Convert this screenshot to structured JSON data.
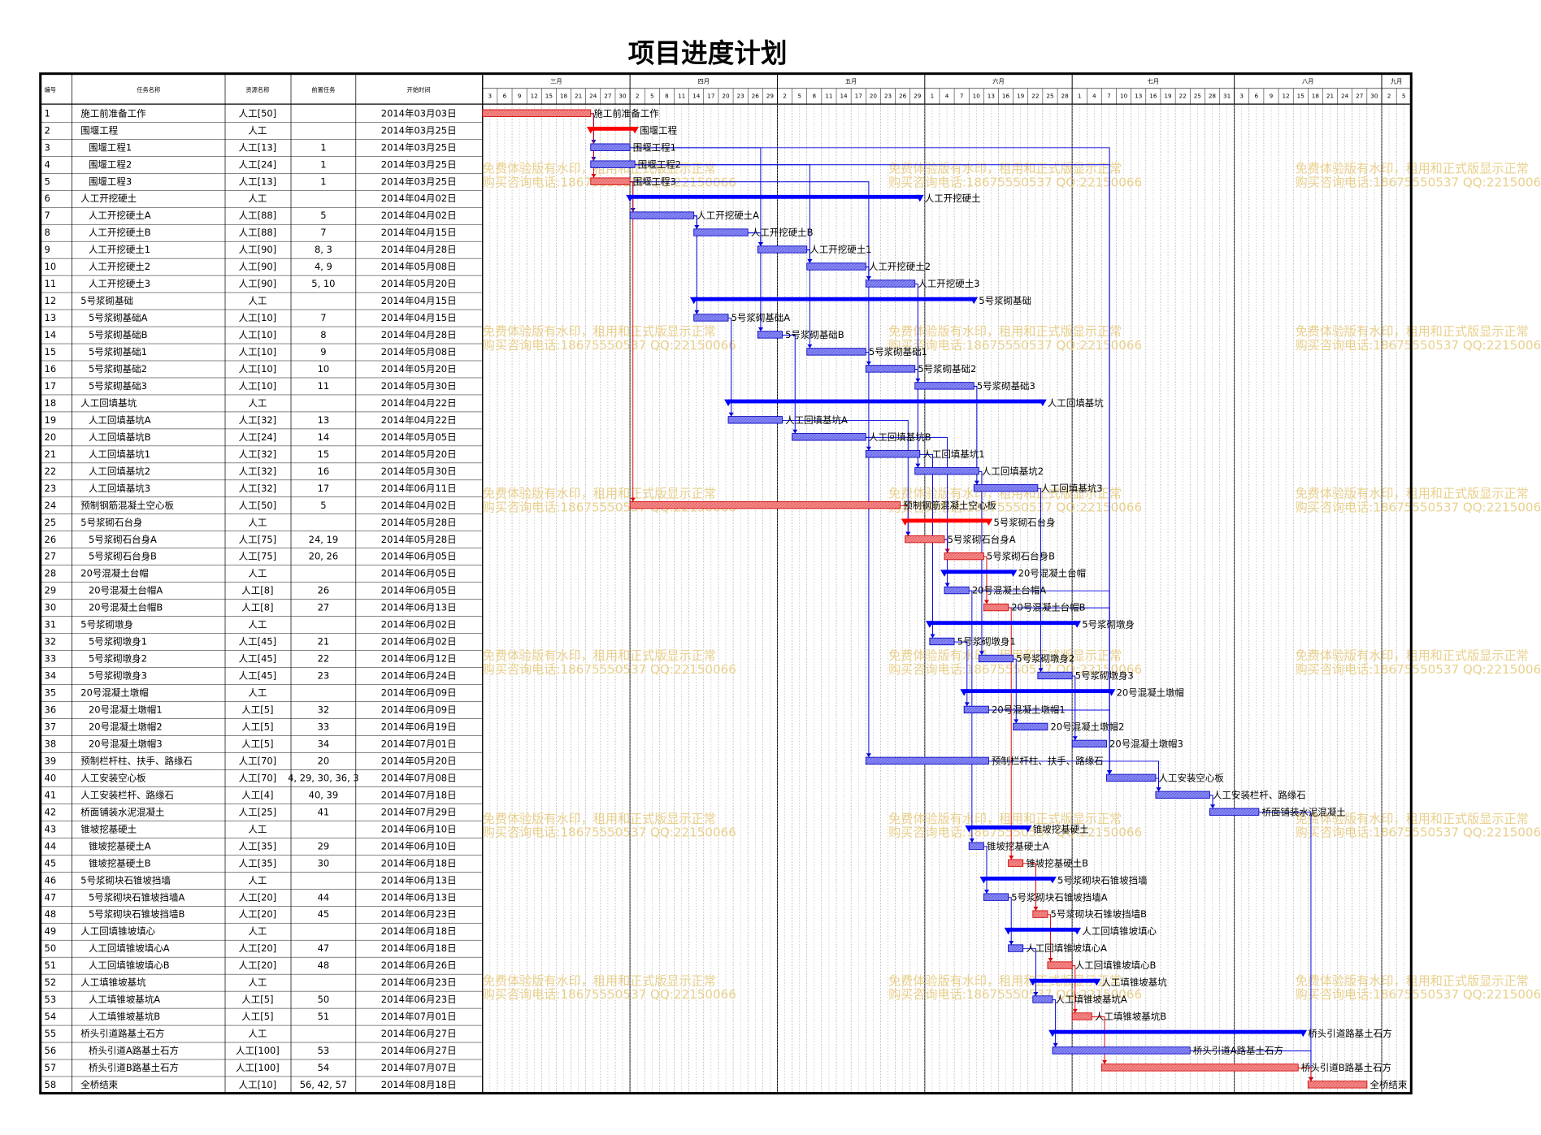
{
  "title": "项目进度计划",
  "columns": [
    "编号",
    "任务名称",
    "资源名称",
    "前置任务",
    "开始时间"
  ],
  "timeline": [
    {
      "month": "三月",
      "days": [
        3,
        6,
        9,
        12,
        15,
        18,
        21,
        24,
        27,
        30
      ]
    },
    {
      "month": "四月",
      "days": [
        2,
        5,
        8,
        11,
        14,
        17,
        20,
        23,
        26,
        29
      ]
    },
    {
      "month": "五月",
      "days": [
        2,
        5,
        8,
        11,
        14,
        17,
        20,
        23,
        26,
        29
      ]
    },
    {
      "month": "六月",
      "days": [
        1,
        4,
        7,
        10,
        13,
        16,
        19,
        22,
        25,
        28
      ]
    },
    {
      "month": "七月",
      "days": [
        1,
        4,
        7,
        10,
        13,
        16,
        19,
        22,
        25,
        28,
        31
      ]
    },
    {
      "month": "八月",
      "days": [
        3,
        6,
        9,
        12,
        15,
        18,
        21,
        24,
        27,
        30
      ]
    },
    {
      "month": "九月",
      "days": [
        2,
        5
      ]
    }
  ],
  "watermark": {
    "line1": "免费体验版有水印，租用和正式版显示正常",
    "line2": "购买咨询电话:18675550537 QQ:22150066"
  },
  "rows": [
    [
      "1",
      "施工前准备工作",
      "人工[50]",
      null,
      "2014年03月03日"
    ],
    [
      "2",
      "围堰工程",
      "人工",
      null,
      "2014年03月25日"
    ],
    [
      "3",
      "围堰工程1",
      "人工[13]",
      "1",
      "2014年03月25日"
    ],
    [
      "4",
      "围堰工程2",
      "人工[24]",
      "1",
      "2014年03月25日"
    ],
    [
      "5",
      "围堰工程3",
      "人工[13]",
      "1",
      "2014年03月25日"
    ],
    [
      "6",
      "人工开挖硬土",
      "人工",
      null,
      "2014年04月02日"
    ],
    [
      "7",
      "人工开挖硬土A",
      "人工[88]",
      "5",
      "2014年04月02日"
    ],
    [
      "8",
      "人工开挖硬土B",
      "人工[88]",
      "7",
      "2014年04月15日"
    ],
    [
      "9",
      "人工开挖硬土1",
      "人工[90]",
      "8, 3",
      "2014年04月28日"
    ],
    [
      "10",
      "人工开挖硬土2",
      "人工[90]",
      "4, 9",
      "2014年05月08日"
    ],
    [
      "11",
      "人工开挖硬土3",
      "人工[90]",
      "5, 10",
      "2014年05月20日"
    ],
    [
      "12",
      "5号浆砌基础",
      "人工",
      null,
      "2014年04月15日"
    ],
    [
      "13",
      "5号浆砌基础A",
      "人工[10]",
      "7",
      "2014年04月15日"
    ],
    [
      "14",
      "5号浆砌基础B",
      "人工[10]",
      "8",
      "2014年04月28日"
    ],
    [
      "15",
      "5号浆砌基础1",
      "人工[10]",
      "9",
      "2014年05月08日"
    ],
    [
      "16",
      "5号浆砌基础2",
      "人工[10]",
      "10",
      "2014年05月20日"
    ],
    [
      "17",
      "5号浆砌基础3",
      "人工[10]",
      "11",
      "2014年05月30日"
    ],
    [
      "18",
      "人工回填基坑",
      "人工",
      null,
      "2014年04月22日"
    ],
    [
      "19",
      "人工回填基坑A",
      "人工[32]",
      "13",
      "2014年04月22日"
    ],
    [
      "20",
      "人工回填基坑B",
      "人工[24]",
      "14",
      "2014年05月05日"
    ],
    [
      "21",
      "人工回填基坑1",
      "人工[32]",
      "15",
      "2014年05月20日"
    ],
    [
      "22",
      "人工回填基坑2",
      "人工[32]",
      "16",
      "2014年05月30日"
    ],
    [
      "23",
      "人工回填基坑3",
      "人工[32]",
      "17",
      "2014年06月11日"
    ],
    [
      "24",
      "预制钢筋混凝土空心板",
      "人工[50]",
      "5",
      "2014年04月02日"
    ],
    [
      "25",
      "5号浆砌石台身",
      "人工",
      null,
      "2014年05月28日"
    ],
    [
      "26",
      "5号浆砌石台身A",
      "人工[75]",
      "24, 19",
      "2014年05月28日"
    ],
    [
      "27",
      "5号浆砌石台身B",
      "人工[75]",
      "20, 26",
      "2014年06月05日"
    ],
    [
      "28",
      "20号混凝土台帽",
      "人工",
      null,
      "2014年06月05日"
    ],
    [
      "29",
      "20号混凝土台帽A",
      "人工[8]",
      "26",
      "2014年06月05日"
    ],
    [
      "30",
      "20号混凝土台帽B",
      "人工[8]",
      "27",
      "2014年06月13日"
    ],
    [
      "31",
      "5号浆砌墩身",
      "人工",
      null,
      "2014年06月02日"
    ],
    [
      "32",
      "5号浆砌墩身1",
      "人工[45]",
      "21",
      "2014年06月02日"
    ],
    [
      "33",
      "5号浆砌墩身2",
      "人工[45]",
      "22",
      "2014年06月12日"
    ],
    [
      "34",
      "5号浆砌墩身3",
      "人工[45]",
      "23",
      "2014年06月24日"
    ],
    [
      "35",
      "20号混凝土墩帽",
      "人工",
      null,
      "2014年06月09日"
    ],
    [
      "36",
      "20号混凝土墩帽1",
      "人工[5]",
      "32",
      "2014年06月09日"
    ],
    [
      "37",
      "20号混凝土墩帽2",
      "人工[5]",
      "33",
      "2014年06月19日"
    ],
    [
      "38",
      "20号混凝土墩帽3",
      "人工[5]",
      "34",
      "2014年07月01日"
    ],
    [
      "39",
      "预制栏杆柱、扶手、路缘石",
      "人工[70]",
      "20",
      "2014年05月20日"
    ],
    [
      "40",
      "人工安装空心板",
      "人工[70]",
      "4, 29, 30, 36, 3",
      "2014年07月08日"
    ],
    [
      "41",
      "人工安装栏杆、路缘石",
      "人工[4]",
      "40, 39",
      "2014年07月18日"
    ],
    [
      "42",
      "桥面铺装水泥混凝土",
      "人工[25]",
      "41",
      "2014年07月29日"
    ],
    [
      "43",
      "锥坡挖基硬土",
      "人工",
      null,
      "2014年06月10日"
    ],
    [
      "44",
      "锥坡挖基硬土A",
      "人工[35]",
      "29",
      "2014年06月10日"
    ],
    [
      "45",
      "锥坡挖基硬土B",
      "人工[35]",
      "30",
      "2014年06月18日"
    ],
    [
      "46",
      "5号浆砌块石锥坡挡墙",
      "人工",
      null,
      "2014年06月13日"
    ],
    [
      "47",
      "5号浆砌块石锥坡挡墙A",
      "人工[20]",
      "44",
      "2014年06月13日"
    ],
    [
      "48",
      "5号浆砌块石锥坡挡墙B",
      "人工[20]",
      "45",
      "2014年06月23日"
    ],
    [
      "49",
      "人工回填锥坡填心",
      "人工",
      null,
      "2014年06月18日"
    ],
    [
      "50",
      "人工回填锥坡填心A",
      "人工[20]",
      "47",
      "2014年06月18日"
    ],
    [
      "51",
      "人工回填锥坡填心B",
      "人工[20]",
      "48",
      "2014年06月26日"
    ],
    [
      "52",
      "人工填锥坡基坑",
      "人工",
      null,
      "2014年06月23日"
    ],
    [
      "53",
      "人工填锥坡基坑A",
      "人工[5]",
      "50",
      "2014年06月23日"
    ],
    [
      "54",
      "人工填锥坡基坑B",
      "人工[5]",
      "51",
      "2014年07月01日"
    ],
    [
      "55",
      "桥头引道路基土石方",
      "人工",
      null,
      "2014年06月27日"
    ],
    [
      "56",
      "桥头引道A路基土石方",
      "人工[100]",
      "53",
      "2014年06月27日"
    ],
    [
      "57",
      "桥头引道B路基土石方",
      "人工[100]",
      "54",
      "2014年07月07日"
    ],
    [
      "58",
      "全桥结束",
      "人工[10]",
      "56, 42, 57",
      "2014年08月18日"
    ]
  ]
}
